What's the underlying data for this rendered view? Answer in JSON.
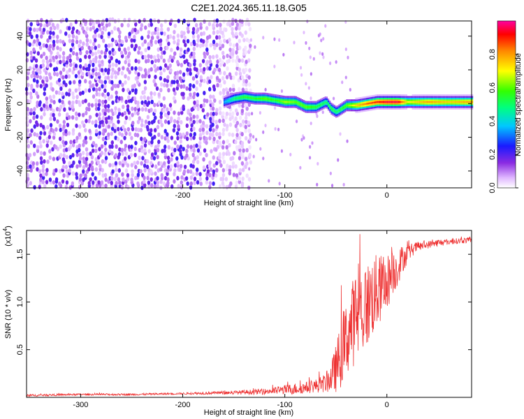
{
  "title": "C2E1.2024.365.11.18.G05",
  "colors": {
    "signal": "#ee3333",
    "axis": "#000000"
  },
  "chart_data": [
    {
      "type": "heatmap",
      "xlabel": "Height of straight line (km)",
      "ylabel": "Frequency (Hz)",
      "xlim": [
        -353,
        83
      ],
      "ylim": [
        -50,
        49
      ],
      "xticks": [
        -300,
        -200,
        -100,
        0
      ],
      "xtick_labels": [
        "-300",
        "-200",
        "-100",
        "0"
      ],
      "yticks": [
        -40,
        -20,
        0,
        20,
        40
      ],
      "ytick_labels": [
        "-40",
        "-20",
        "0",
        "20",
        "40"
      ],
      "colorbar": {
        "label": "Normalized spectral amplitude",
        "range": [
          0,
          1
        ],
        "ticks": [
          0.0,
          0.2,
          0.4,
          0.6,
          0.8
        ],
        "tick_labels": [
          "0.0",
          "0.2",
          "0.4",
          "0.6",
          "0.8"
        ],
        "colormap": "rainbow"
      },
      "ridge": {
        "x": [
          -160,
          -150,
          -140,
          -130,
          -120,
          -110,
          -100,
          -90,
          -80,
          -70,
          -60,
          -55,
          -50,
          -45,
          -40,
          -30,
          -20,
          -10,
          0,
          10,
          20,
          40,
          60,
          83
        ],
        "y": [
          1,
          3,
          4,
          3,
          3,
          2,
          1,
          1,
          -2,
          -2,
          1,
          -3,
          -5,
          -3,
          -1,
          -1,
          0,
          1,
          1,
          1,
          1,
          1,
          1,
          1
        ],
        "amplitude": [
          0.35,
          0.5,
          0.55,
          0.55,
          0.6,
          0.55,
          0.65,
          0.6,
          0.6,
          0.55,
          0.5,
          0.55,
          0.5,
          0.55,
          0.6,
          0.75,
          0.85,
          0.9,
          0.95,
          0.95,
          0.7,
          0.8,
          0.75,
          0.8
        ]
      },
      "noise_region_x": [
        -353,
        -135
      ]
    },
    {
      "type": "line",
      "xlabel": "Height of straight line (km)",
      "ylabel": "SNR (10 * v/v)",
      "scale_label": "(x10",
      "scale_exp": "4",
      "scale_close": ")",
      "xlim": [
        -353,
        83
      ],
      "ylim": [
        0,
        1.75
      ],
      "xticks": [
        -300,
        -200,
        -100,
        0
      ],
      "xtick_labels": [
        "-300",
        "-200",
        "-100",
        "0"
      ],
      "yticks": [
        0.5,
        1.0,
        1.5
      ],
      "ytick_labels": [
        "0.5",
        "1.0",
        "1.5"
      ],
      "series": [
        {
          "x": [
            -353,
            -300,
            -250,
            -200,
            -150,
            -120,
            -100,
            -90,
            -80,
            -70,
            -60,
            -55,
            -50,
            -45,
            -40,
            -35,
            -30,
            -25,
            -20,
            -15,
            -10,
            -5,
            0,
            5,
            10,
            15,
            20,
            25,
            30,
            40,
            50,
            60,
            70,
            83
          ],
          "y": [
            0.02,
            0.03,
            0.03,
            0.04,
            0.05,
            0.06,
            0.08,
            0.09,
            0.1,
            0.12,
            0.15,
            0.2,
            0.3,
            0.45,
            0.6,
            0.75,
            0.85,
            0.9,
            0.95,
            1.05,
            1.1,
            1.15,
            1.2,
            1.3,
            1.35,
            1.45,
            1.5,
            1.55,
            1.58,
            1.6,
            1.62,
            1.63,
            1.64,
            1.65
          ],
          "spread": [
            0.01,
            0.01,
            0.01,
            0.01,
            0.02,
            0.03,
            0.05,
            0.06,
            0.06,
            0.07,
            0.1,
            0.15,
            0.25,
            0.35,
            0.4,
            0.45,
            0.5,
            0.5,
            0.45,
            0.45,
            0.4,
            0.35,
            0.3,
            0.25,
            0.2,
            0.15,
            0.1,
            0.07,
            0.05,
            0.04,
            0.04,
            0.03,
            0.03,
            0.03
          ]
        }
      ]
    }
  ]
}
